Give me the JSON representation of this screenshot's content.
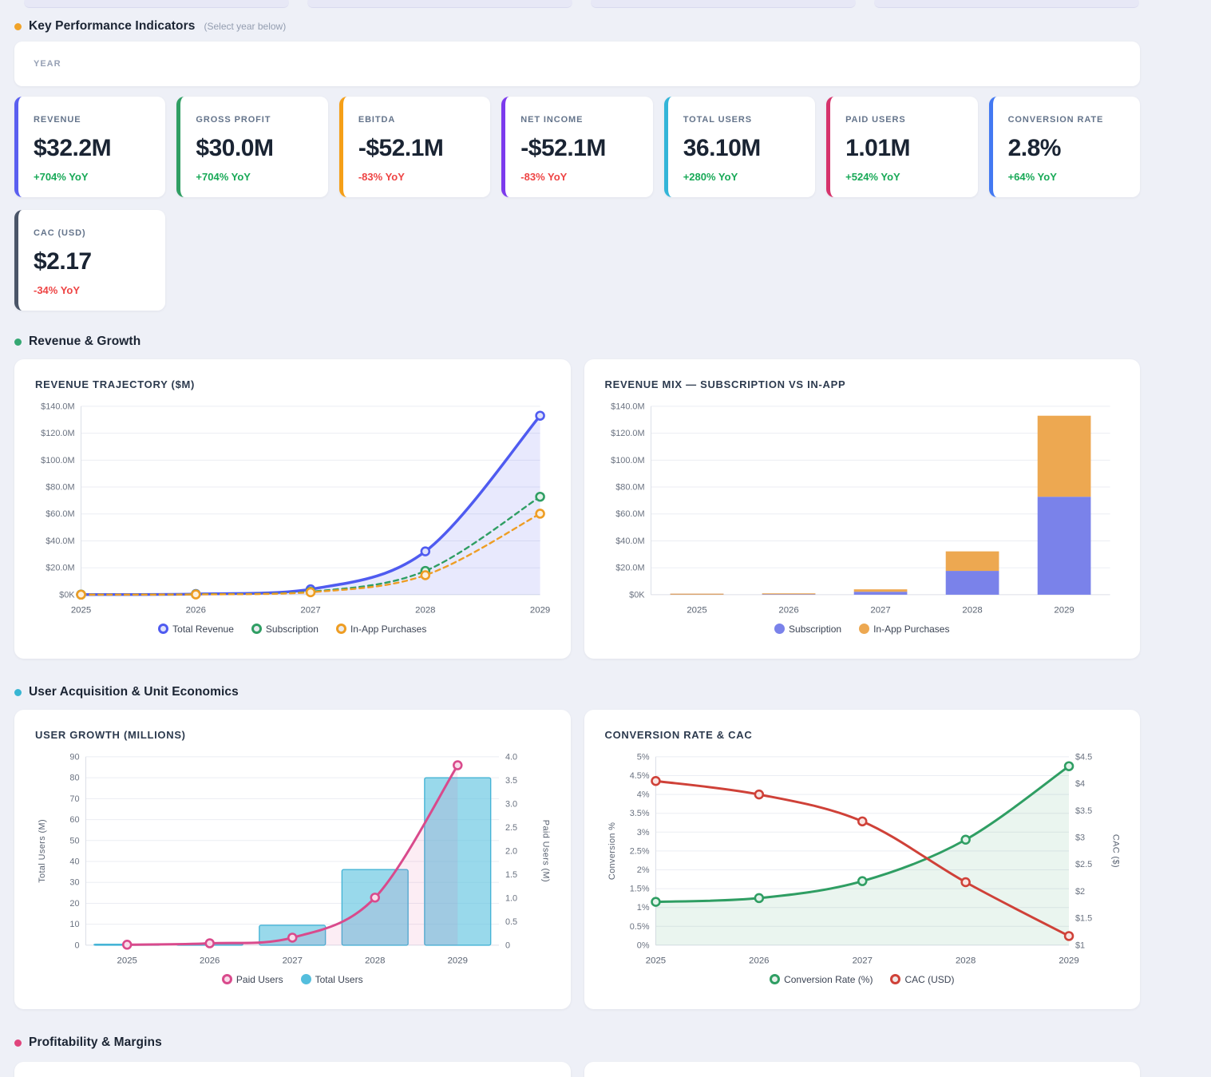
{
  "headers": {
    "kpi": {
      "title": "Key Performance Indicators",
      "subtitle": "(Select year below)",
      "dot": "#f0a32a"
    },
    "revenue": {
      "title": "Revenue & Growth",
      "dot": "#35a873"
    },
    "users": {
      "title": "User Acquisition & Unit Economics",
      "dot": "#38b6d3"
    },
    "profitability": {
      "title": "Profitability & Margins",
      "dot": "#e0447c"
    }
  },
  "year_selector": {
    "label": "YEAR"
  },
  "kpis": [
    {
      "label": "REVENUE",
      "value": "$32.2M",
      "delta": "+704% YoY",
      "accent": "#5a5ff0",
      "positive": true
    },
    {
      "label": "GROSS PROFIT",
      "value": "$30.0M",
      "delta": "+704% YoY",
      "accent": "#2f9e63",
      "positive": true
    },
    {
      "label": "EBITDA",
      "value": "-$52.1M",
      "delta": "-83% YoY",
      "accent": "#f59f18",
      "positive": false
    },
    {
      "label": "NET INCOME",
      "value": "-$52.1M",
      "delta": "-83% YoY",
      "accent": "#7c3aed",
      "positive": false
    },
    {
      "label": "TOTAL USERS",
      "value": "36.10M",
      "delta": "+280% YoY",
      "accent": "#33b5d8",
      "positive": true
    },
    {
      "label": "PAID USERS",
      "value": "1.01M",
      "delta": "+524% YoY",
      "accent": "#d6336c",
      "positive": true
    },
    {
      "label": "CONVERSION RATE",
      "value": "2.8%",
      "delta": "+64% YoY",
      "accent": "#4379f2",
      "positive": true
    },
    {
      "label": "CAC (USD)",
      "value": "$2.17",
      "delta": "-34% YoY",
      "accent": "#4a5568",
      "positive": false
    }
  ],
  "chart_data": [
    {
      "id": "revenue-trajectory",
      "title": "REVENUE TRAJECTORY ($M)",
      "type": "line",
      "x_mode": "edge",
      "categories": [
        "2025",
        "2026",
        "2027",
        "2028",
        "2029"
      ],
      "left_axis": {
        "min": 0,
        "max": 140,
        "tick_labels": [
          "$0K",
          "$20.0M",
          "$40.0M",
          "$60.0M",
          "$80.0M",
          "$100.0M",
          "$120.0M",
          "$140.0M"
        ]
      },
      "series": [
        {
          "name": "Total Revenue",
          "values": [
            0.11,
            0.5,
            4.0,
            32.2,
            133.0
          ],
          "color": "#4f5bf0",
          "width": 3.5,
          "marker_fill": "#dfe2fb",
          "area_fill": "rgba(90,102,241,0.14)"
        },
        {
          "name": "Subscription",
          "values": [
            0.06,
            0.3,
            2.2,
            17.7,
            72.8
          ],
          "color": "#2f9e63",
          "width": 2.4,
          "dash": "6 5",
          "marker_fill": "#e2f3ea"
        },
        {
          "name": "In-App Purchases",
          "values": [
            0.05,
            0.2,
            1.8,
            14.5,
            60.2
          ],
          "color": "#ee9d23",
          "width": 2.4,
          "dash": "6 5",
          "marker_fill": "#fdf0dc"
        }
      ],
      "legend": [
        {
          "label": "Total Revenue",
          "color": "#4f5bf0",
          "fill": "#dfe2fb"
        },
        {
          "label": "Subscription",
          "color": "#2f9e63",
          "fill": "#e9ebef"
        },
        {
          "label": "In-App Purchases",
          "color": "#ee9d23",
          "fill": "#e9ebef"
        }
      ]
    },
    {
      "id": "revenue-mix",
      "title": "REVENUE MIX — SUBSCRIPTION VS IN-APP",
      "type": "stacked-bar",
      "x_mode": "band",
      "bar_frac": 0.58,
      "categories": [
        "2025",
        "2026",
        "2027",
        "2028",
        "2029"
      ],
      "left_axis": {
        "min": 0,
        "max": 140,
        "tick_labels": [
          "$0K",
          "$20.0M",
          "$40.0M",
          "$60.0M",
          "$80.0M",
          "$100.0M",
          "$120.0M",
          "$140.0M"
        ]
      },
      "series": [
        {
          "name": "Subscription",
          "kind": "stack",
          "values": [
            0.06,
            0.3,
            2.2,
            17.7,
            72.8
          ],
          "color": "#7a82ea"
        },
        {
          "name": "In-App Purchases",
          "kind": "stack",
          "values": [
            0.05,
            0.2,
            1.8,
            14.5,
            60.2
          ],
          "color": "#eda851"
        }
      ],
      "legend": [
        {
          "label": "Subscription",
          "color": "#7a82ea",
          "fill": "#7a82ea"
        },
        {
          "label": "In-App Purchases",
          "color": "#eda851",
          "fill": "#eda851"
        }
      ]
    },
    {
      "id": "user-growth",
      "title": "USER GROWTH (MILLIONS)",
      "type": "combo",
      "x_mode": "band",
      "bar_frac": 0.8,
      "categories": [
        "2025",
        "2026",
        "2027",
        "2028",
        "2029"
      ],
      "left_axis": {
        "min": 0,
        "max": 90,
        "title": "Total Users (M)",
        "tick_labels": [
          "0",
          "10",
          "20",
          "30",
          "40",
          "50",
          "60",
          "70",
          "80",
          "90"
        ]
      },
      "right_axis": {
        "min": 0,
        "max": 4,
        "title": "Paid Users (M)",
        "tick_labels": [
          "0",
          "0.5",
          "1.0",
          "1.5",
          "2.0",
          "2.5",
          "3.0",
          "3.5",
          "4.0"
        ]
      },
      "series": [
        {
          "name": "Total Users",
          "kind": "bar",
          "axis": "left",
          "values": [
            0.13,
            0.65,
            9.5,
            36.1,
            80.0
          ],
          "color": "rgba(91,193,222,0.62)",
          "stroke": "#46b4d6"
        },
        {
          "name": "Paid Users",
          "kind": "line",
          "axis": "right",
          "values": [
            0.01,
            0.04,
            0.16,
            1.01,
            3.82
          ],
          "color": "#d94a8c",
          "width": 3,
          "marker_fill": "#f9dcea",
          "area_fill": "rgba(221,78,145,0.10)"
        }
      ],
      "legend": [
        {
          "label": "Paid Users",
          "color": "#d94a8c",
          "fill": "#f9dcea"
        },
        {
          "label": "Total Users",
          "color": "#54bedd",
          "fill": "#54bedd"
        }
      ]
    },
    {
      "id": "conversion-cac",
      "title": "CONVERSION RATE & CAC",
      "type": "dual-line",
      "x_mode": "edge",
      "categories": [
        "2025",
        "2026",
        "2027",
        "2028",
        "2029"
      ],
      "left_axis": {
        "min": 0,
        "max": 5,
        "title": "Conversion %",
        "tick_labels": [
          "0%",
          "0.5%",
          "1%",
          "1.5%",
          "2%",
          "2.5%",
          "3%",
          "3.5%",
          "4%",
          "4.5%",
          "5%"
        ]
      },
      "right_axis": {
        "min": 1,
        "max": 4.5,
        "title": "CAC ($)",
        "tick_labels": [
          "$1",
          "$1.5",
          "$2",
          "$2.5",
          "$3",
          "$3.5",
          "$4",
          "$4.5"
        ]
      },
      "series": [
        {
          "name": "Conversion Rate (%)",
          "kind": "line",
          "axis": "left",
          "values": [
            1.15,
            1.25,
            1.7,
            2.8,
            4.75
          ],
          "color": "#2f9e63",
          "width": 3,
          "marker_fill": "#e2f3ea",
          "area_fill": "rgba(47,158,99,0.10)"
        },
        {
          "name": "CAC (USD)",
          "kind": "line",
          "axis": "right",
          "values": [
            4.05,
            3.8,
            3.3,
            2.17,
            1.17
          ],
          "color": "#cf4138",
          "width": 3,
          "marker_fill": "#f9e4e2"
        }
      ],
      "legend": [
        {
          "label": "Conversion Rate (%)",
          "color": "#2f9e63",
          "fill": "#e6efe9"
        },
        {
          "label": "CAC (USD)",
          "color": "#cf4138",
          "fill": "#f0e7e6"
        }
      ]
    }
  ]
}
